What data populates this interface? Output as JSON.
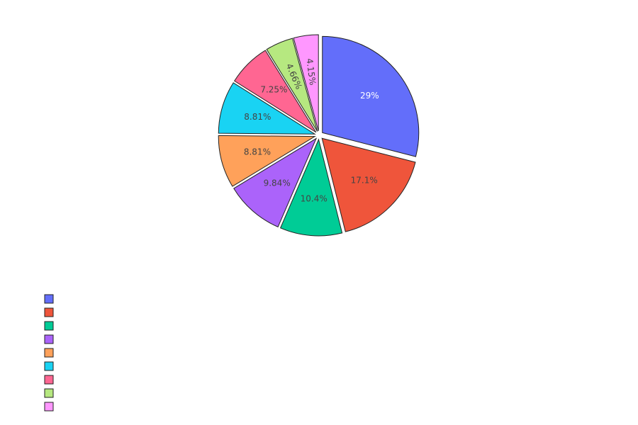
{
  "chart_data": {
    "type": "pie",
    "values": [
      29,
      17.1,
      10.4,
      9.84,
      8.81,
      8.81,
      7.25,
      4.66,
      4.15
    ],
    "labels": [
      "29%",
      "17.1%",
      "10.4%",
      "9.84%",
      "8.81%",
      "8.81%",
      "7.25%",
      "4.66%",
      "4.15%"
    ],
    "colors": [
      "#636efa",
      "#EF553B",
      "#00cc96",
      "#ab63fa",
      "#FFA15A",
      "#19d3f3",
      "#FF6692",
      "#B6E880",
      "#FF97FF"
    ],
    "label_colors": [
      "#ffffff",
      "#444444",
      "#444444",
      "#444444",
      "#444444",
      "#444444",
      "#444444",
      "#444444",
      "#444444"
    ],
    "legend_entries": [
      "",
      "",
      "",
      "",
      "",
      "",
      "",
      "",
      ""
    ],
    "direction": "clockwise",
    "start_angle_deg": 0,
    "pulled_out": true,
    "legend_placement": "bottom-left"
  }
}
